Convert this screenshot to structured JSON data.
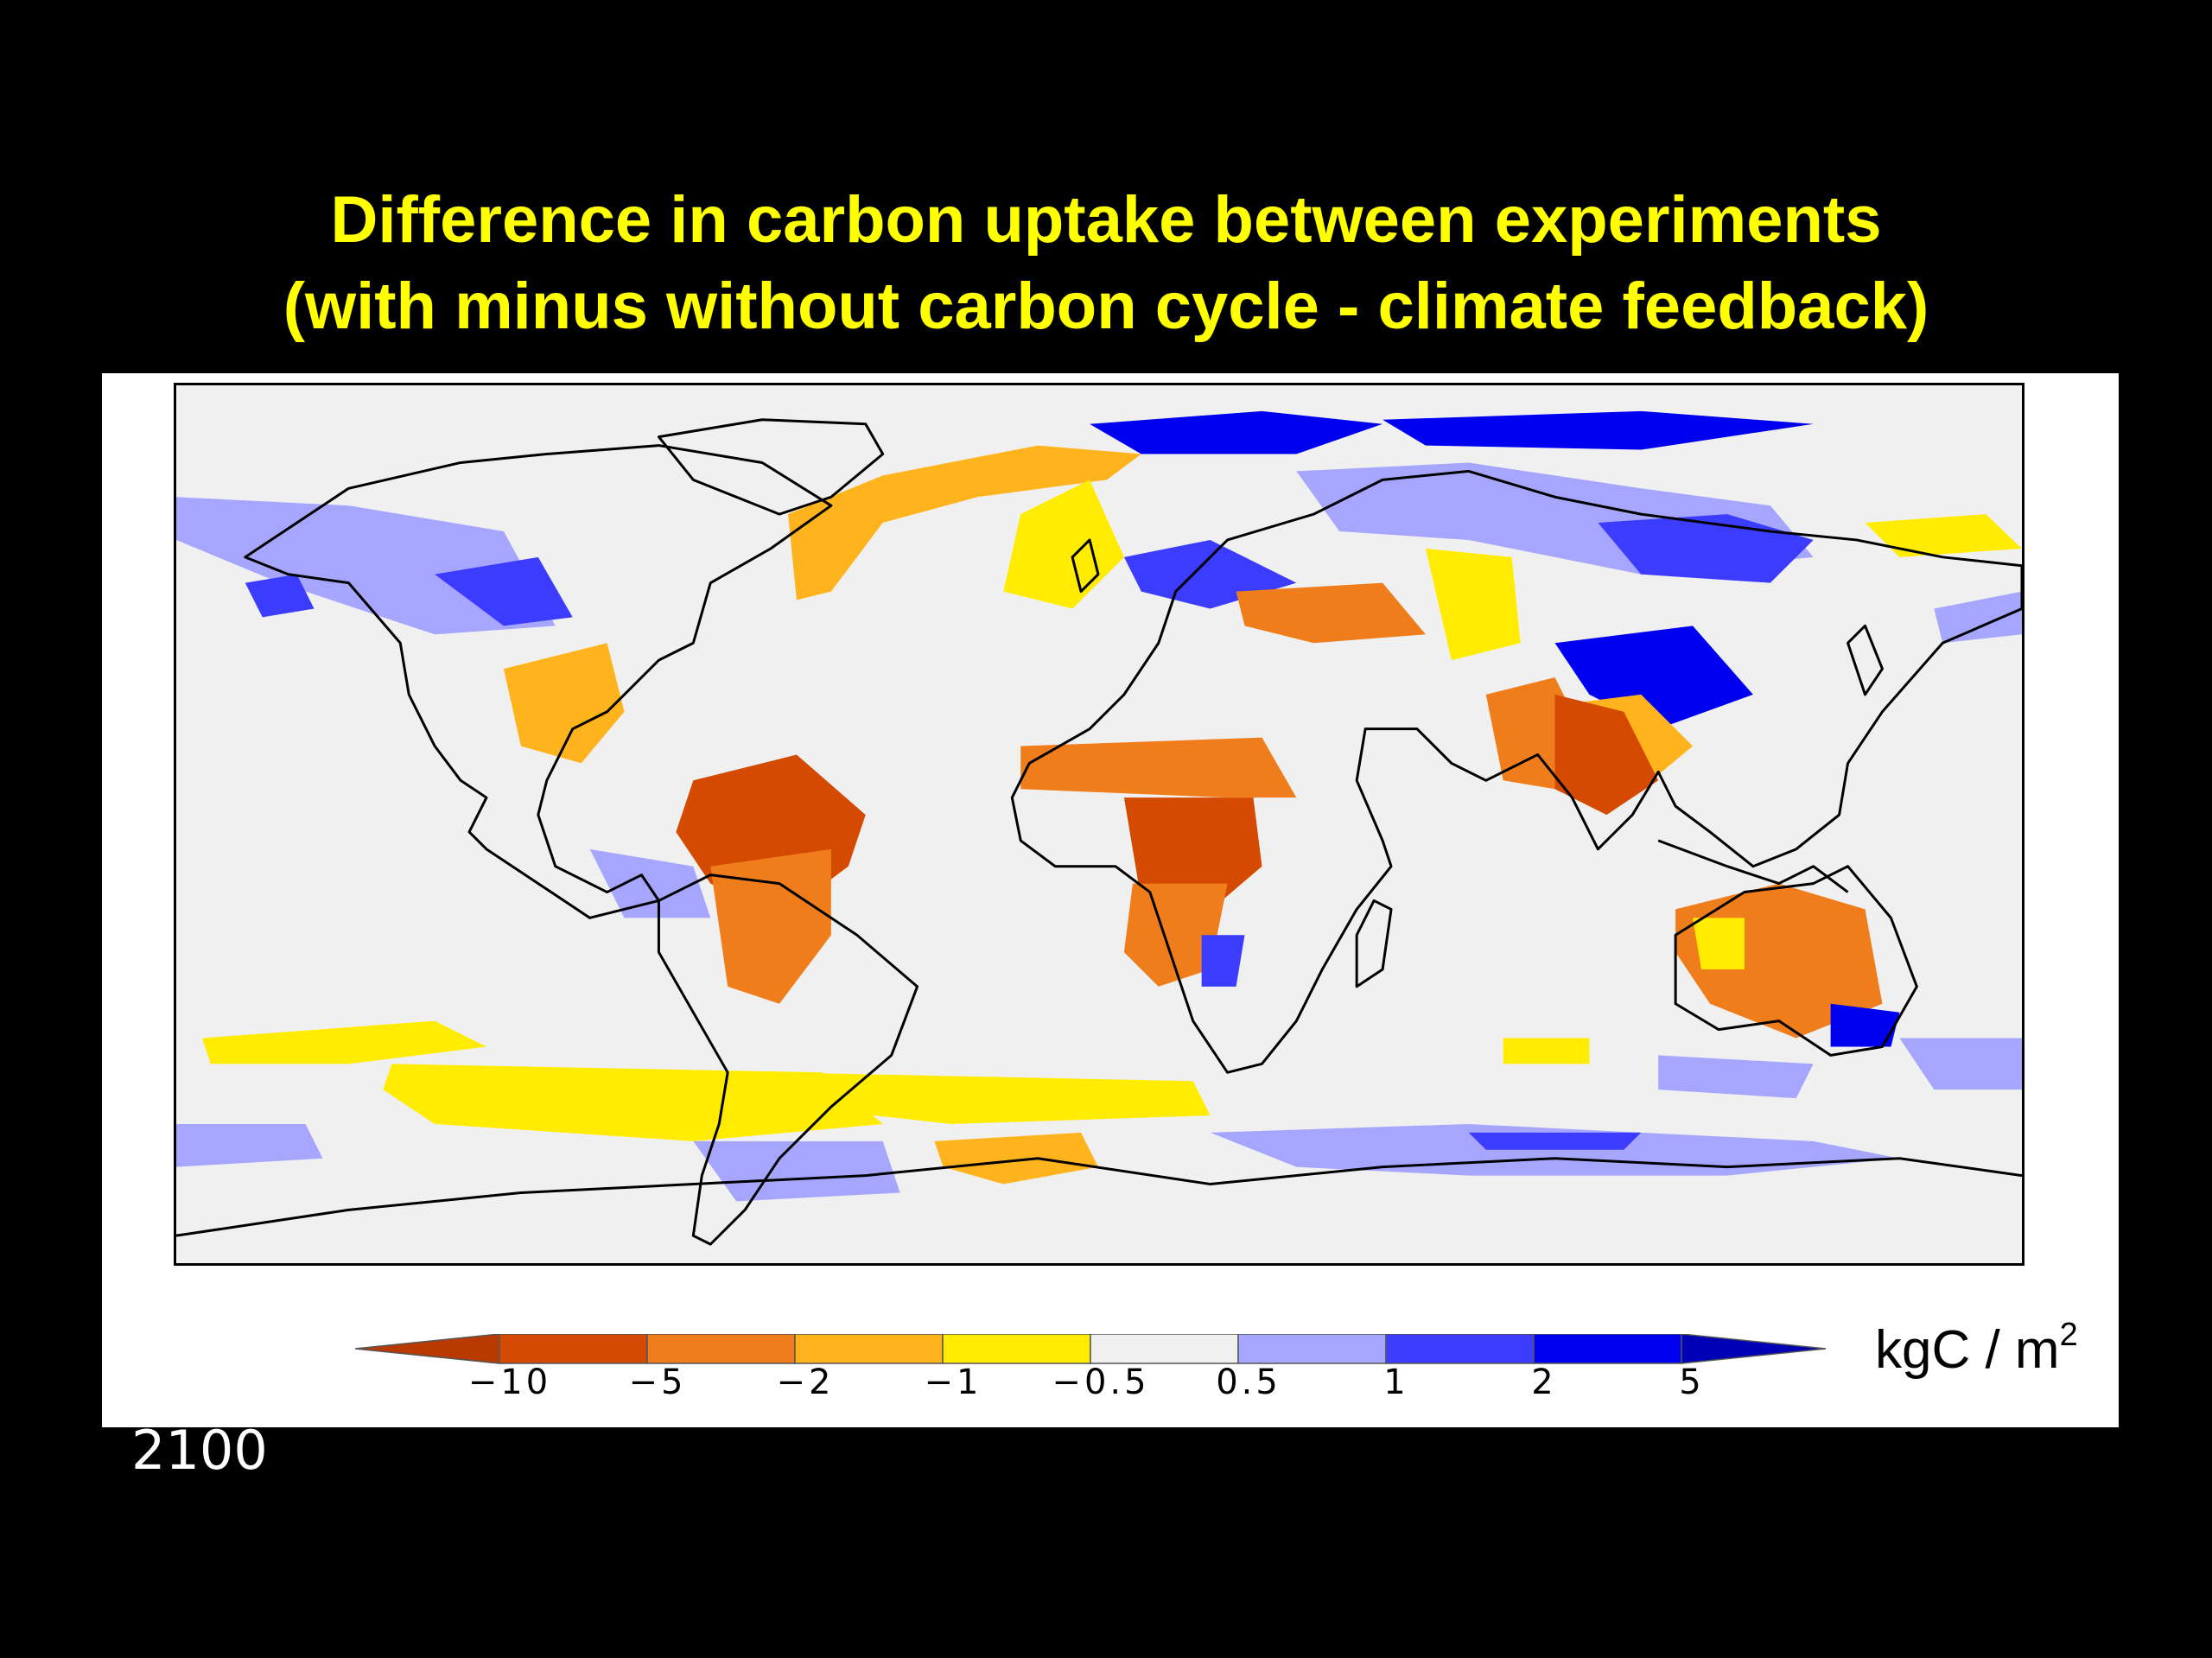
{
  "title": {
    "line1": "Difference in carbon uptake between experiments",
    "line2": "(with minus without carbon cycle - climate feedback)"
  },
  "colors": {
    "background": "#000000",
    "title": "#ffff00",
    "no_change": "#f0f0f0",
    "coast": "#000000"
  },
  "map": {
    "projection": "equirectangular",
    "variable": "difference in carbon uptake"
  },
  "legend": {
    "unit_text": "kgC / m",
    "unit_superscript": "2",
    "ticks": [
      "−10",
      "−5",
      "−2",
      "−1",
      "−0.5",
      "0.5",
      "1",
      "2",
      "5"
    ],
    "bins": [
      {
        "range": "< -10",
        "color": "#b83a00"
      },
      {
        "range": "-10 to -5",
        "color": "#d44a00"
      },
      {
        "range": "-5 to -2",
        "color": "#f07d1c"
      },
      {
        "range": "-2 to -1",
        "color": "#ffb41e"
      },
      {
        "range": "-1 to -0.5",
        "color": "#ffec00"
      },
      {
        "range": "-0.5 to 0.5",
        "color": "#f0f0f0"
      },
      {
        "range": "0.5 to 1",
        "color": "#a6a6ff"
      },
      {
        "range": "1 to 2",
        "color": "#3c3cff"
      },
      {
        "range": "2 to 5",
        "color": "#0000f0"
      },
      {
        "range": "> 5",
        "color": "#0000b4"
      }
    ]
  },
  "footer": {
    "year": "2100"
  }
}
